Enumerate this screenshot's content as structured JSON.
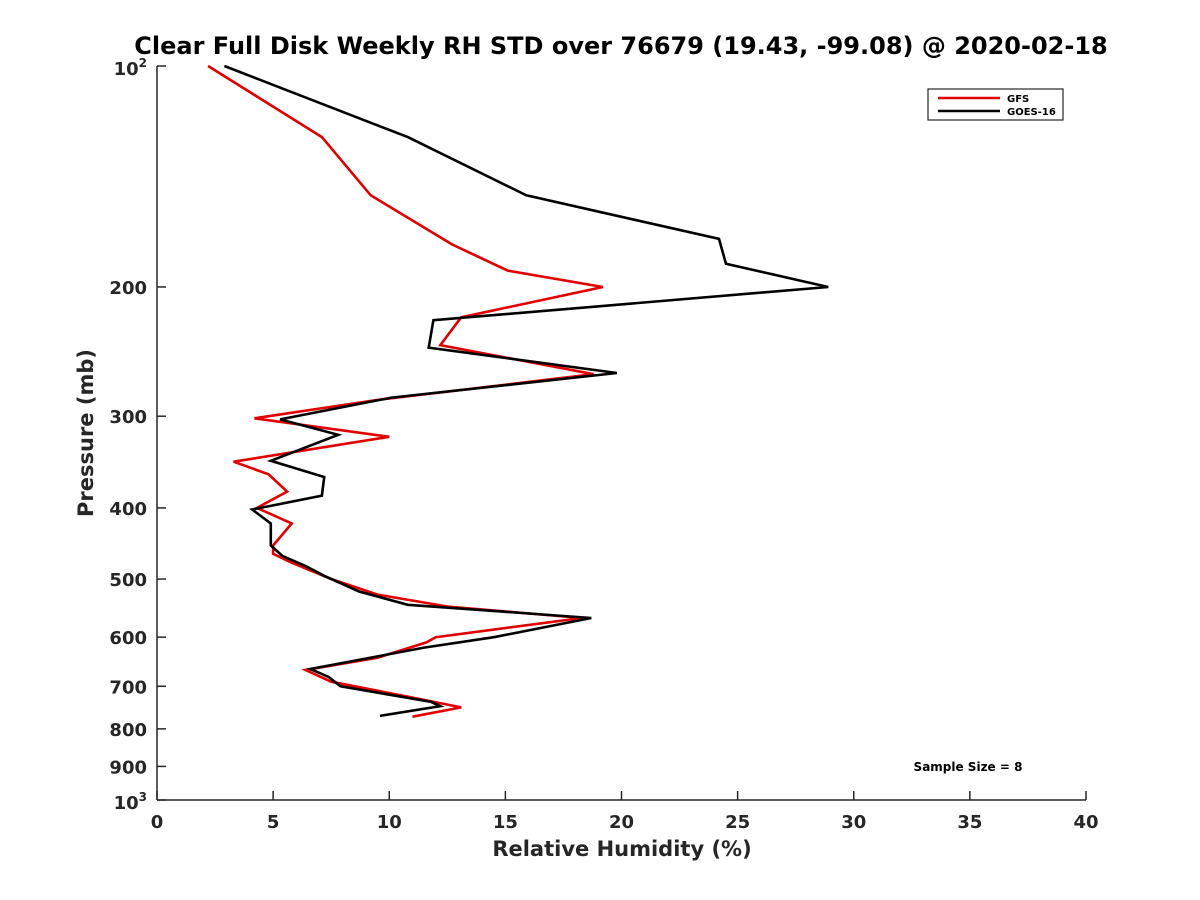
{
  "chart_data": {
    "type": "line",
    "title": "Clear Full Disk Weekly RH STD over 76679 (19.43, -99.08) @ 2020-02-18",
    "xlabel": "Relative Humidity (%)",
    "ylabel": "Pressure (mb)",
    "xlim": [
      0,
      40
    ],
    "ylim": [
      100,
      1000
    ],
    "y_scale": "log",
    "y_reversed": true,
    "x_ticks": [
      "0",
      "5",
      "10",
      "15",
      "20",
      "25",
      "30",
      "35",
      "40"
    ],
    "y_ticks": [
      {
        "value": 100,
        "base": "10",
        "exp": "2"
      },
      {
        "value": 200,
        "label": "200"
      },
      {
        "value": 300,
        "label": "300"
      },
      {
        "value": 400,
        "label": "400"
      },
      {
        "value": 500,
        "label": "500"
      },
      {
        "value": 600,
        "label": "600"
      },
      {
        "value": 700,
        "label": "700"
      },
      {
        "value": 800,
        "label": "800"
      },
      {
        "value": 900,
        "label": "900"
      },
      {
        "value": 1000,
        "base": "10",
        "exp": "3"
      }
    ],
    "grid": false,
    "legend_position": "top-right",
    "annotation": "Sample Size = 8",
    "series": [
      {
        "name": "GFS",
        "color": "#e00000",
        "points": [
          [
            2.2,
            100
          ],
          [
            7.1,
            125
          ],
          [
            9.2,
            150
          ],
          [
            12.7,
            175
          ],
          [
            15.1,
            190
          ],
          [
            19.2,
            200
          ],
          [
            13.1,
            220
          ],
          [
            12.2,
            240
          ],
          [
            18.8,
            263
          ],
          [
            9.5,
            285
          ],
          [
            4.2,
            302
          ],
          [
            10.0,
            320
          ],
          [
            3.3,
            346
          ],
          [
            4.8,
            360
          ],
          [
            5.6,
            380
          ],
          [
            4.3,
            400
          ],
          [
            5.8,
            420
          ],
          [
            5.0,
            450
          ],
          [
            5.0,
            462
          ],
          [
            5.8,
            475
          ],
          [
            7.5,
            500
          ],
          [
            9.5,
            525
          ],
          [
            12.5,
            545
          ],
          [
            18.3,
            565
          ],
          [
            12.0,
            600
          ],
          [
            11.6,
            610
          ],
          [
            9.5,
            640
          ],
          [
            6.4,
            665
          ],
          [
            7.5,
            690
          ],
          [
            10.8,
            723
          ],
          [
            13.1,
            748
          ],
          [
            11.0,
            770
          ]
        ]
      },
      {
        "name": "GOES-16",
        "color": "#000000",
        "points": [
          [
            2.9,
            100
          ],
          [
            10.8,
            125
          ],
          [
            15.9,
            150
          ],
          [
            24.2,
            172
          ],
          [
            24.5,
            186
          ],
          [
            28.9,
            200
          ],
          [
            11.9,
            222
          ],
          [
            11.7,
            242
          ],
          [
            19.8,
            262
          ],
          [
            10.1,
            283
          ],
          [
            5.3,
            303
          ],
          [
            7.8,
            318
          ],
          [
            4.9,
            345
          ],
          [
            7.2,
            363
          ],
          [
            7.1,
            385
          ],
          [
            4.1,
            402
          ],
          [
            4.9,
            420
          ],
          [
            4.9,
            450
          ],
          [
            5.4,
            465
          ],
          [
            6.4,
            480
          ],
          [
            7.2,
            495
          ],
          [
            8.7,
            520
          ],
          [
            10.8,
            542
          ],
          [
            18.7,
            565
          ],
          [
            14.5,
            600
          ],
          [
            11.5,
            620
          ],
          [
            6.6,
            663
          ],
          [
            7.4,
            680
          ],
          [
            7.9,
            700
          ],
          [
            11.8,
            735
          ],
          [
            12.2,
            745
          ],
          [
            9.6,
            768
          ]
        ]
      }
    ]
  }
}
